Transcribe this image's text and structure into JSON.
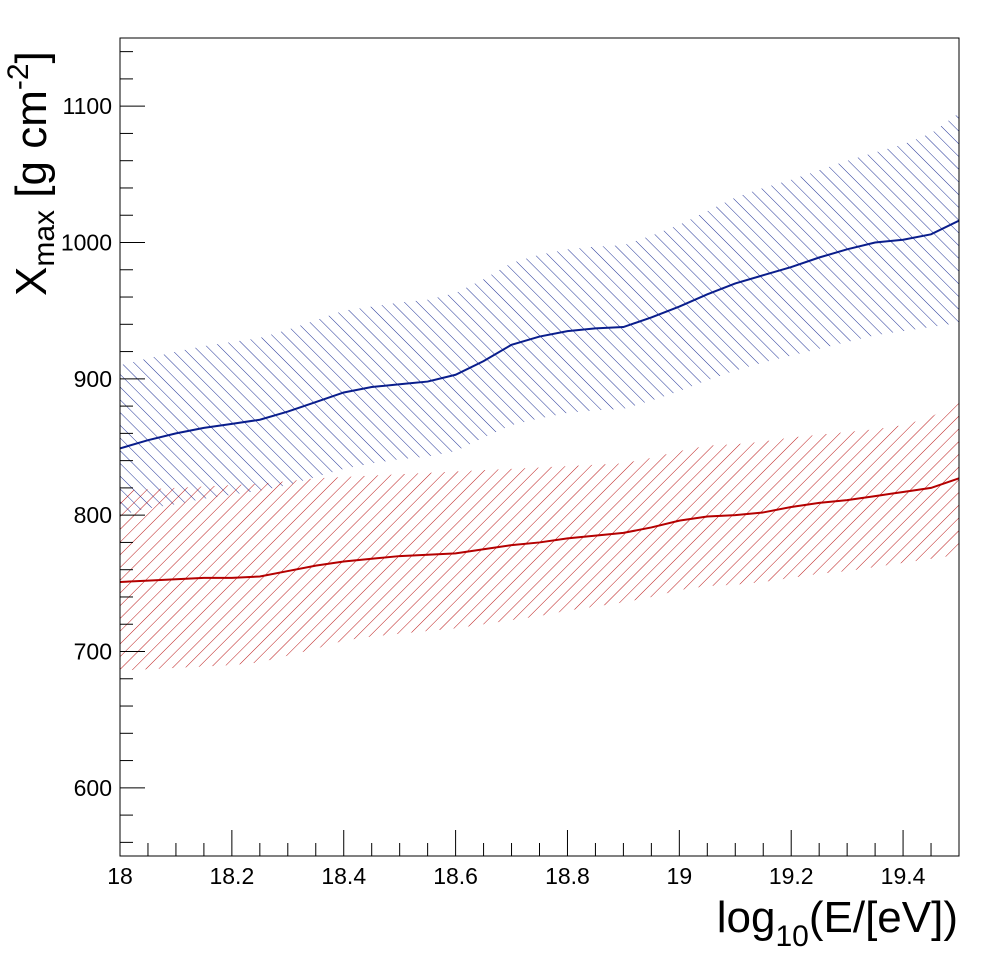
{
  "chart_data": {
    "type": "line",
    "title": "",
    "xlabel": {
      "base": "log",
      "sub": "10",
      "rest": "(E/[eV])"
    },
    "ylabel": {
      "base": "X",
      "sub": "max",
      "rest": " [g cm",
      "sup": "-2",
      "close": "]"
    },
    "xlim": [
      18.0,
      19.5
    ],
    "ylim": [
      550,
      1150
    ],
    "x_ticks": [
      {
        "value": 18.0,
        "label": "18"
      },
      {
        "value": 18.2,
        "label": "18.2"
      },
      {
        "value": 18.4,
        "label": "18.4"
      },
      {
        "value": 18.6,
        "label": "18.6"
      },
      {
        "value": 18.8,
        "label": "18.8"
      },
      {
        "value": 19.0,
        "label": "19"
      },
      {
        "value": 19.2,
        "label": "19.2"
      },
      {
        "value": 19.4,
        "label": "19.4"
      }
    ],
    "y_ticks": [
      {
        "value": 600,
        "label": "600"
      },
      {
        "value": 700,
        "label": "700"
      },
      {
        "value": 800,
        "label": "800"
      },
      {
        "value": 900,
        "label": "900"
      },
      {
        "value": 1000,
        "label": "1000"
      },
      {
        "value": 1100,
        "label": "1100"
      }
    ],
    "grid": false,
    "series": [
      {
        "name": "blue",
        "color": "#0a1e8c",
        "x": [
          18.0,
          18.05,
          18.1,
          18.15,
          18.2,
          18.25,
          18.3,
          18.35,
          18.4,
          18.45,
          18.5,
          18.55,
          18.6,
          18.65,
          18.7,
          18.75,
          18.8,
          18.85,
          18.9,
          18.95,
          19.0,
          19.05,
          19.1,
          19.15,
          19.2,
          19.25,
          19.3,
          19.35,
          19.4,
          19.45,
          19.5
        ],
        "y": [
          849,
          855,
          860,
          864,
          867,
          870,
          876,
          883,
          890,
          894,
          896,
          898,
          903,
          913,
          925,
          931,
          935,
          937,
          938,
          945,
          953,
          962,
          970,
          976,
          982,
          989,
          995,
          1000,
          1002,
          1006,
          1016
        ],
        "upper": [
          910,
          915,
          920,
          924,
          927,
          930,
          936,
          943,
          950,
          953,
          956,
          958,
          963,
          973,
          985,
          991,
          995,
          997,
          998,
          1005,
          1013,
          1023,
          1033,
          1040,
          1046,
          1053,
          1060,
          1066,
          1072,
          1080,
          1095
        ],
        "lower": [
          800,
          805,
          808,
          812,
          815,
          818,
          822,
          828,
          834,
          838,
          841,
          843,
          847,
          857,
          866,
          871,
          875,
          877,
          878,
          884,
          891,
          899,
          906,
          912,
          917,
          922,
          927,
          932,
          935,
          938,
          941
        ]
      },
      {
        "name": "red",
        "color": "#b40000",
        "x": [
          18.0,
          18.05,
          18.1,
          18.15,
          18.2,
          18.25,
          18.3,
          18.35,
          18.4,
          18.45,
          18.5,
          18.55,
          18.6,
          18.65,
          18.7,
          18.75,
          18.8,
          18.85,
          18.9,
          18.95,
          19.0,
          19.05,
          19.1,
          19.15,
          19.2,
          19.25,
          19.3,
          19.35,
          19.4,
          19.45,
          19.5
        ],
        "y": [
          751,
          752,
          753,
          754,
          754,
          755,
          759,
          763,
          766,
          768,
          770,
          771,
          772,
          775,
          778,
          780,
          783,
          785,
          787,
          791,
          796,
          799,
          800,
          802,
          806,
          809,
          811,
          814,
          817,
          820,
          827
        ],
        "upper": [
          818,
          819,
          820,
          821,
          822,
          823,
          825,
          827,
          828,
          829,
          830,
          831,
          832,
          833,
          834,
          835,
          836,
          837,
          838,
          842,
          847,
          851,
          852,
          854,
          857,
          859,
          861,
          863,
          866,
          872,
          884
        ],
        "lower": [
          686,
          687,
          688,
          689,
          690,
          692,
          697,
          702,
          708,
          711,
          713,
          715,
          717,
          720,
          723,
          726,
          730,
          733,
          736,
          740,
          745,
          748,
          749,
          751,
          754,
          757,
          759,
          762,
          765,
          768,
          771
        ]
      }
    ]
  }
}
